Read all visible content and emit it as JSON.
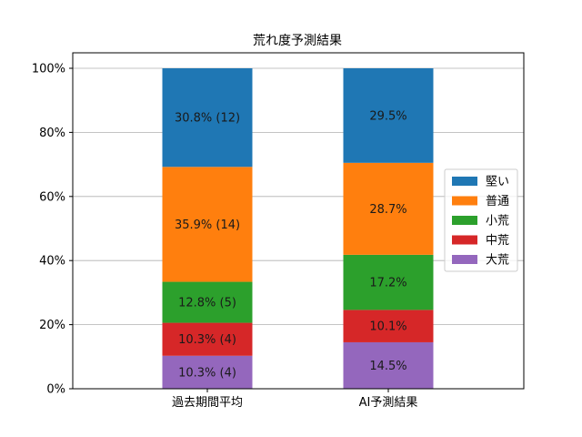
{
  "chart_data": {
    "type": "bar",
    "stacked": true,
    "title": "荒れ度予測結果",
    "categories": [
      "過去期間平均",
      "AI予測結果"
    ],
    "ylim": [
      0,
      100
    ],
    "yticks": [
      "0%",
      "20%",
      "40%",
      "60%",
      "80%",
      "100%"
    ],
    "grid": "horizontal",
    "legend_position": "right",
    "series": [
      {
        "name": "大荒",
        "color": "#9467bd",
        "values": [
          10.3,
          14.5
        ],
        "labels": [
          "10.3% (4)",
          "14.5%"
        ]
      },
      {
        "name": "中荒",
        "color": "#d62728",
        "values": [
          10.3,
          10.1
        ],
        "labels": [
          "10.3% (4)",
          "10.1%"
        ]
      },
      {
        "name": "小荒",
        "color": "#2ca02c",
        "values": [
          12.8,
          17.2
        ],
        "labels": [
          "12.8% (5)",
          "17.2%"
        ]
      },
      {
        "name": "普通",
        "color": "#ff7f0e",
        "values": [
          35.9,
          28.7
        ],
        "labels": [
          "35.9% (14)",
          "28.7%"
        ]
      },
      {
        "name": "堅い",
        "color": "#1f77b4",
        "values": [
          30.8,
          29.5
        ],
        "labels": [
          "30.8% (12)",
          "29.5%"
        ]
      }
    ],
    "legend_order": [
      "堅い",
      "普通",
      "小荒",
      "中荒",
      "大荒"
    ]
  }
}
